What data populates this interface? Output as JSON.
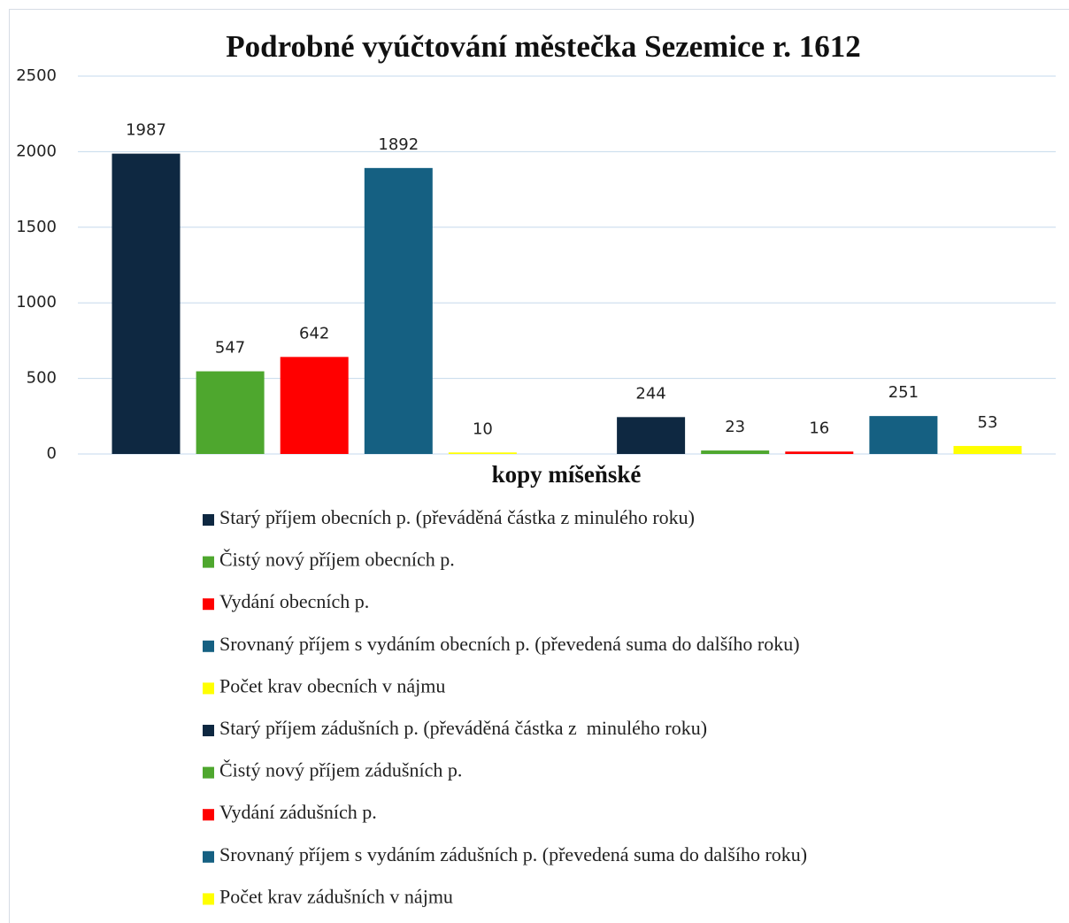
{
  "chart_data": {
    "type": "bar",
    "title": "Podrobné vyúčtování městečka Sezemice r. 1612",
    "x_label": "kopy míšeňské",
    "categories": [
      null
    ],
    "series": [
      {
        "name": "Starý příjem obecních p. (převáděná částka z minulého roku)",
        "color": "#0e2841",
        "values": [
          1987
        ]
      },
      {
        "name": "Čistý nový příjem obecních p.",
        "color": "#4ea72e",
        "values": [
          547
        ]
      },
      {
        "name": "Vydání obecních p.",
        "color": "#ff0000",
        "values": [
          642
        ]
      },
      {
        "name": "Srovnaný příjem s vydáním obecních p. (převedená suma do dalšího roku)",
        "color": "#156082",
        "values": [
          1892
        ]
      },
      {
        "name": "Počet krav obecních v nájmu",
        "color": "#ffff00",
        "values": [
          10
        ]
      },
      {
        "name": "Starý příjem zádušních p. (převáděná částka z  minulého roku)",
        "color": "#0e2841",
        "values": [
          244
        ]
      },
      {
        "name": "Čistý nový příjem zádušních p.",
        "color": "#4ea72e",
        "values": [
          23
        ]
      },
      {
        "name": "Vydání zádušních p.",
        "color": "#ff0000",
        "values": [
          16
        ]
      },
      {
        "name": "Srovnaný příjem s vydáním zádušních p. (převedená suma do dalšího roku)",
        "color": "#156082",
        "values": [
          251
        ]
      },
      {
        "name": "Počet krav zádušních v nájmu",
        "color": "#ffff00",
        "values": [
          53
        ]
      }
    ],
    "ylim": [
      0,
      2500
    ],
    "yticks": [
      0,
      500,
      1000,
      1500,
      2000,
      2500
    ],
    "grid": true,
    "legend": "bottom"
  }
}
